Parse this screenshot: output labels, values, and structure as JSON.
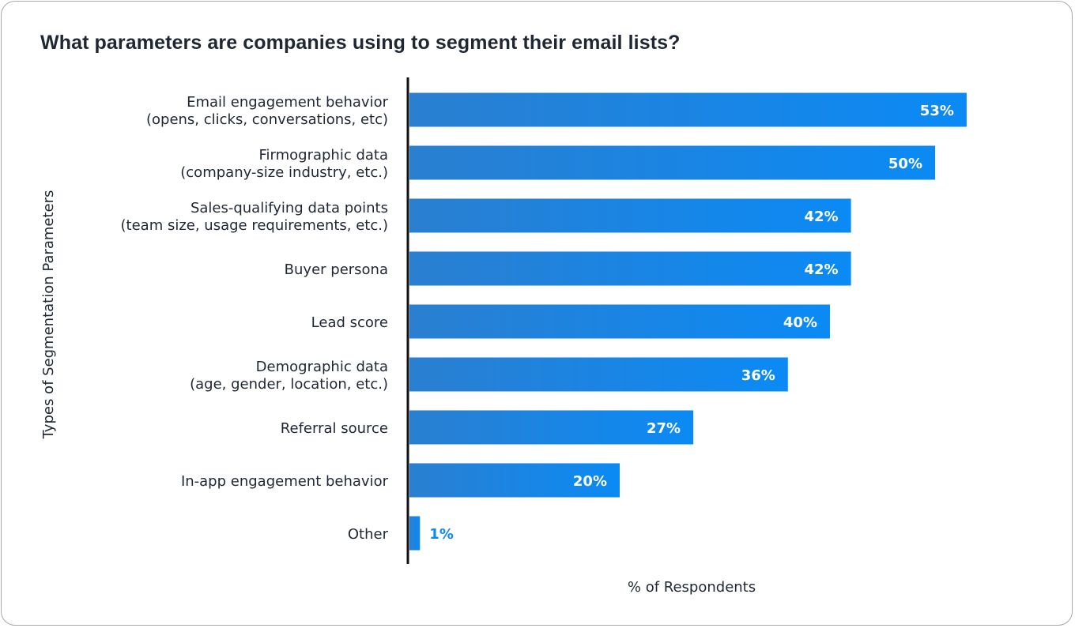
{
  "chart_data": {
    "type": "bar",
    "orientation": "horizontal",
    "title": "What parameters are companies using to segment their email lists?",
    "xlabel": "% of Respondents",
    "ylabel": "Types of Segmentation Parameters",
    "xlim": [
      0,
      58
    ],
    "categories": [
      [
        "Email engagement behavior",
        "(opens, clicks, conversations, etc)"
      ],
      [
        "Firmographic data",
        "(company-size industry, etc.)"
      ],
      [
        "Sales-qualifying data points",
        "(team size, usage requirements, etc.)"
      ],
      [
        "Buyer persona"
      ],
      [
        "Lead score"
      ],
      [
        "Demographic data",
        "(age, gender, location, etc.)"
      ],
      [
        "Referral source"
      ],
      [
        "In-app engagement behavior"
      ],
      [
        "Other"
      ]
    ],
    "values": [
      53,
      50,
      42,
      42,
      40,
      36,
      27,
      20,
      1
    ],
    "value_labels": [
      "53%",
      "50%",
      "42%",
      "42%",
      "40%",
      "36%",
      "27%",
      "20%",
      "1%"
    ],
    "grid": false,
    "legend": "none",
    "colors": {
      "bar_start": "#2a7fd0",
      "bar_end": "#0b8af5",
      "label_inside": "#ffffff",
      "label_outside": "#0b8af5",
      "axis": "#111111",
      "text": "#1f2733"
    }
  }
}
